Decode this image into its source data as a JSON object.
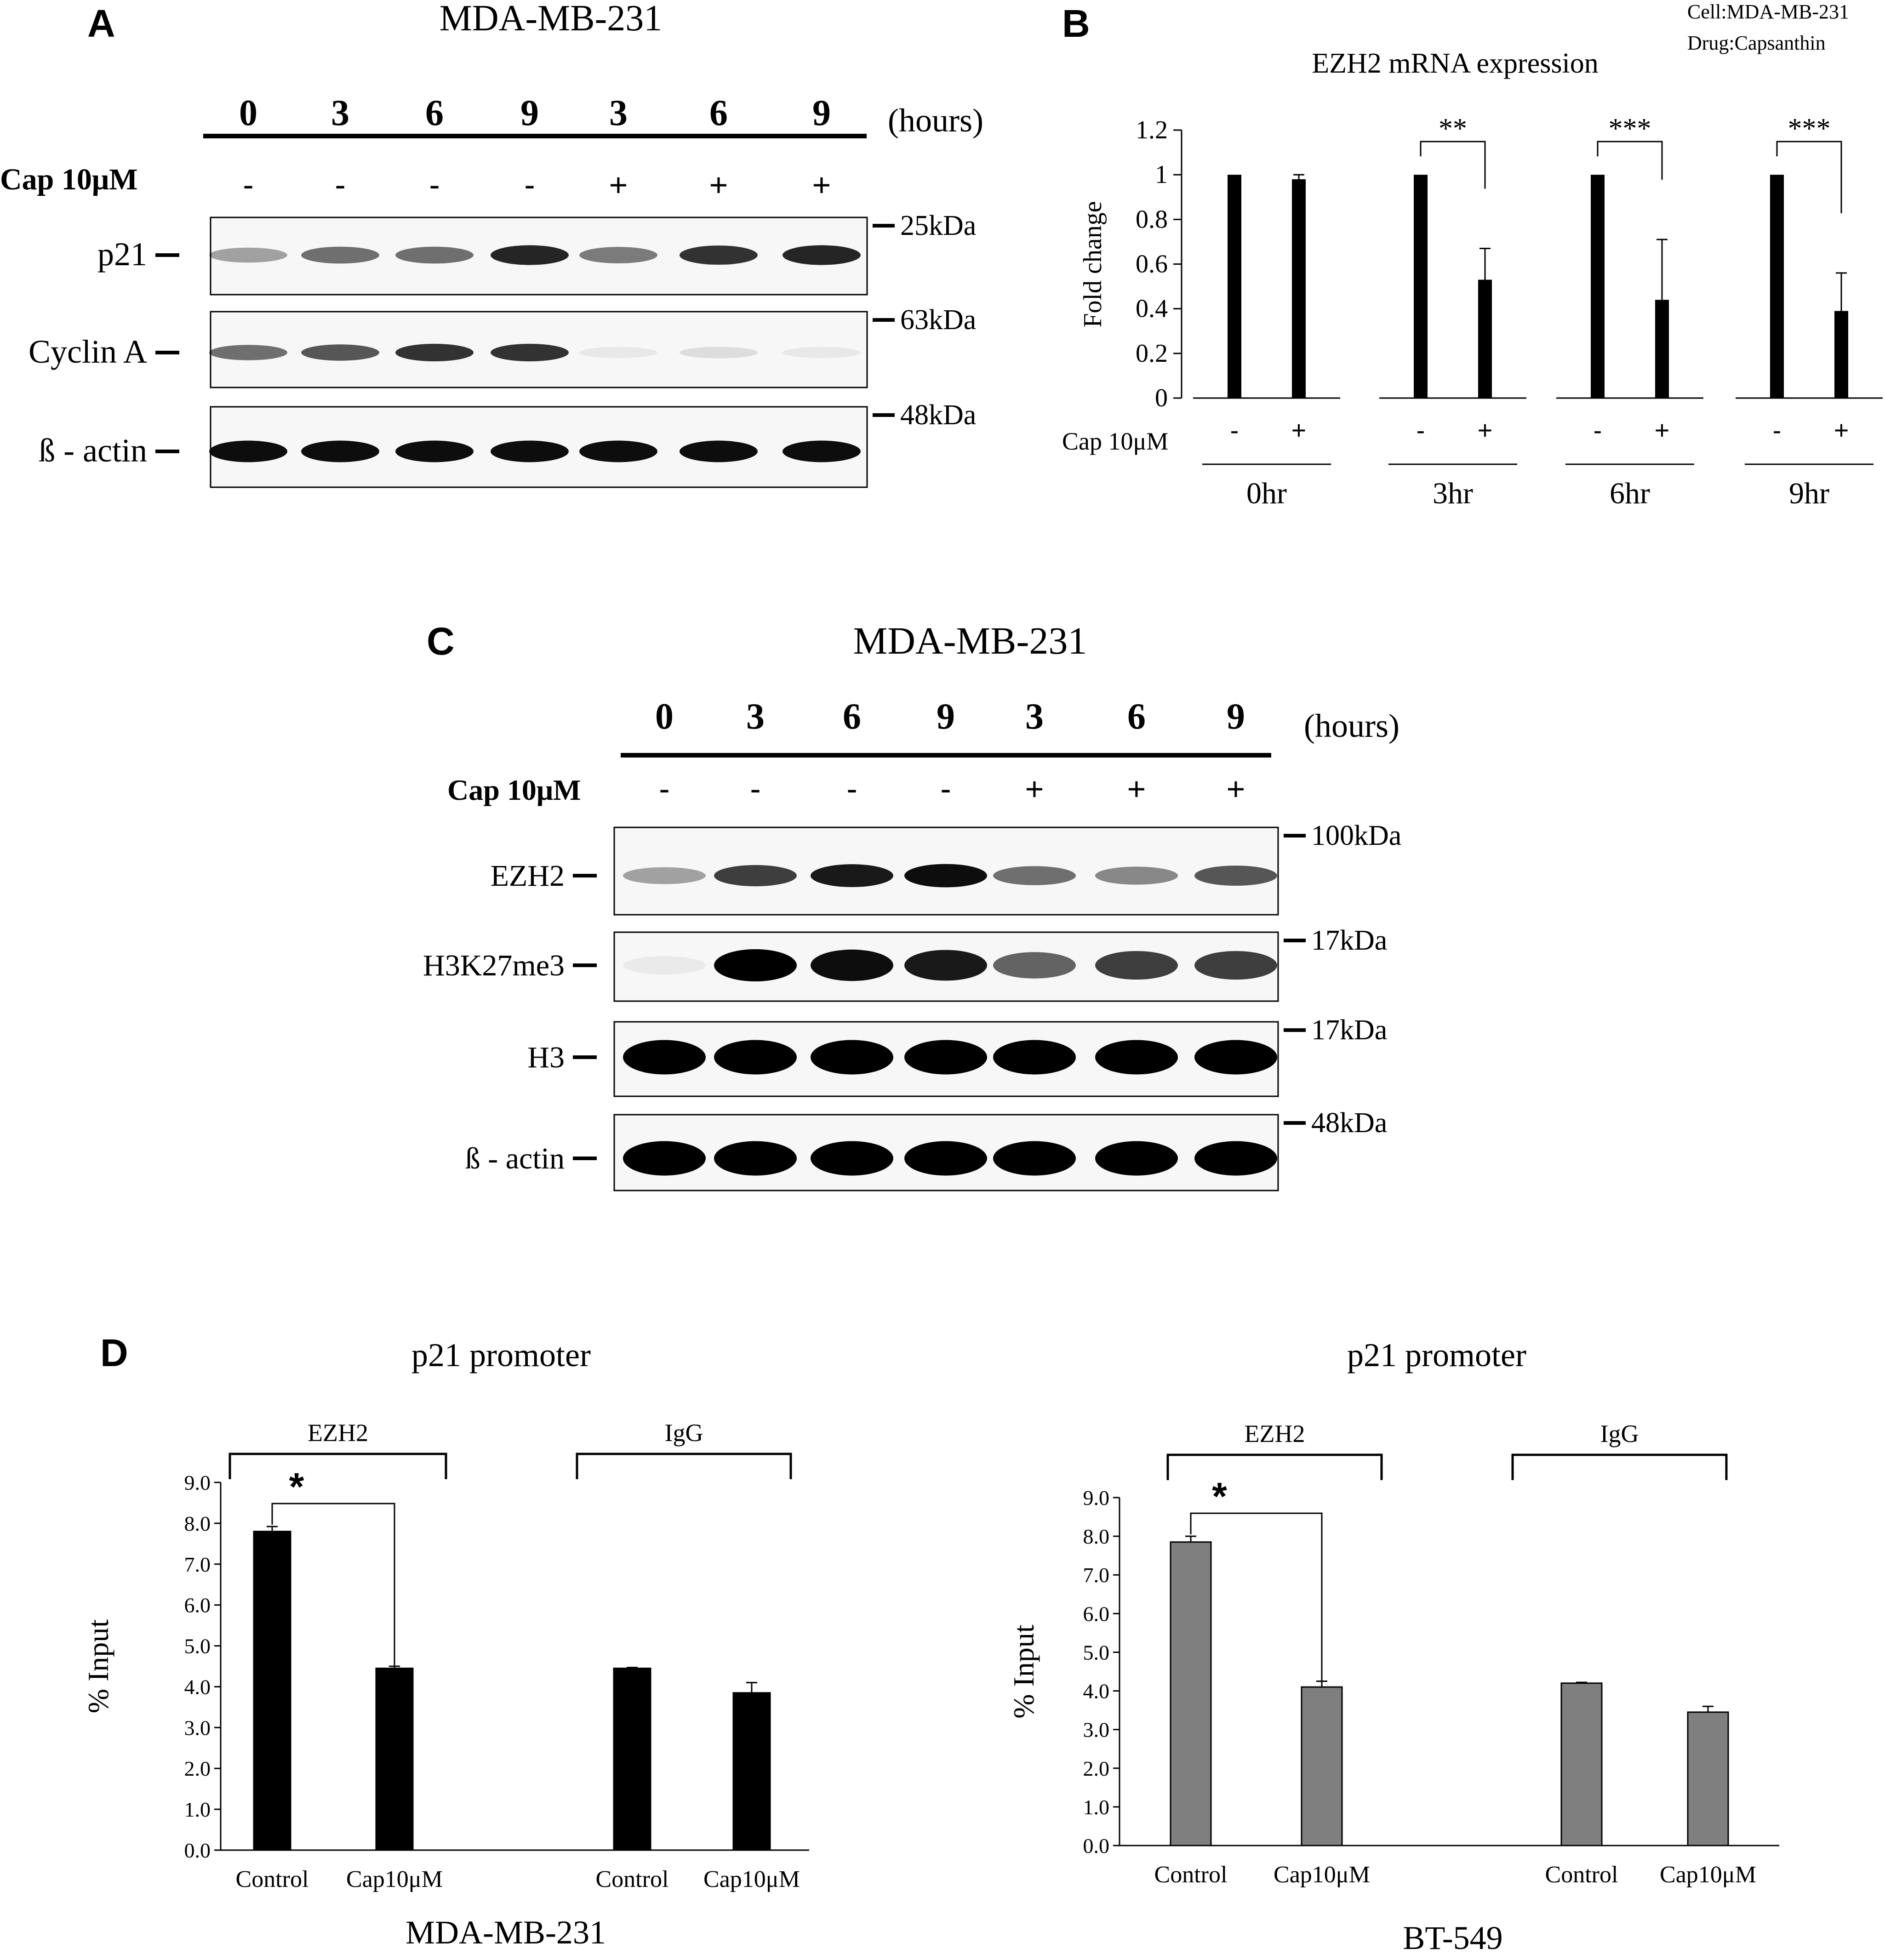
{
  "panelA": {
    "letter": "A",
    "title": "MDA-MB-231",
    "time_label": "(hours)",
    "times": [
      "0",
      "3",
      "6",
      "9",
      "3",
      "6",
      "9"
    ],
    "treatment_label": "Cap 10μM",
    "treatment_signs": [
      "-",
      "-",
      "-",
      "-",
      "+",
      "+",
      "+"
    ],
    "blots": [
      {
        "name": "p21",
        "mw": "25kDa",
        "intensity": [
          0.35,
          0.55,
          0.55,
          0.85,
          0.5,
          0.8,
          0.85
        ]
      },
      {
        "name": "Cyclin A",
        "mw": "63kDa",
        "intensity": [
          0.55,
          0.65,
          0.8,
          0.8,
          0.06,
          0.1,
          0.06
        ]
      },
      {
        "name": "ß - actin",
        "mw": "48kDa",
        "intensity": [
          0.95,
          0.95,
          0.95,
          0.95,
          0.95,
          0.95,
          0.95
        ]
      }
    ]
  },
  "panelB": {
    "letter": "B",
    "corner_note": [
      "Cell:MDA-MB-231",
      "Drug:Capsanthin"
    ],
    "chart_data": {
      "type": "bar",
      "title": "EZH2 mRNA expression",
      "ylabel": "Fold change",
      "ylim": [
        0,
        1.2
      ],
      "yticks": [
        "0",
        "0.2",
        "0.4",
        "0.6",
        "0.8",
        "1",
        "1.2"
      ],
      "treatment_label": "Cap 10μM",
      "signs": [
        "-",
        "+"
      ],
      "groups": [
        "0hr",
        "3hr",
        "6hr",
        "9hr"
      ],
      "series": [
        {
          "values": [
            1,
            1,
            1,
            1
          ],
          "errors": [
            0,
            0,
            0,
            0
          ]
        },
        {
          "values": [
            0.98,
            0.53,
            0.44,
            0.39
          ],
          "errors": [
            0.02,
            0.14,
            0.27,
            0.17
          ]
        }
      ],
      "significance": [
        "",
        "**",
        "***",
        "***"
      ]
    }
  },
  "panelC": {
    "letter": "C",
    "title": "MDA-MB-231",
    "time_label": "(hours)",
    "times": [
      "0",
      "3",
      "6",
      "9",
      "3",
      "6",
      "9"
    ],
    "treatment_label": "Cap 10μM",
    "treatment_signs": [
      "-",
      "-",
      "-",
      "-",
      "+",
      "+",
      "+"
    ],
    "blots": [
      {
        "name": "EZH2",
        "mw": "100kDa",
        "intensity": [
          0.35,
          0.75,
          0.9,
          0.95,
          0.55,
          0.45,
          0.65
        ]
      },
      {
        "name": "H3K27me3",
        "mw": "17kDa",
        "intensity": [
          0.05,
          1.0,
          0.95,
          0.9,
          0.6,
          0.75,
          0.75
        ]
      },
      {
        "name": "H3",
        "mw": "17kDa",
        "intensity": [
          1.0,
          1.0,
          1.0,
          1.0,
          1.0,
          1.0,
          1.0
        ]
      },
      {
        "name": "ß - actin",
        "mw": "48kDa",
        "intensity": [
          1.0,
          1.0,
          1.0,
          1.0,
          1.0,
          1.0,
          1.0
        ]
      }
    ]
  },
  "panelD": {
    "letter": "D",
    "chart_data": [
      {
        "type": "bar",
        "title": "p21  promoter",
        "subtitle": "MDA-MB-231",
        "ylabel": "% Input",
        "ylim": [
          0,
          9
        ],
        "yticks": [
          "0.0",
          "1.0",
          "2.0",
          "3.0",
          "4.0",
          "5.0",
          "6.0",
          "7.0",
          "8.0",
          "9.0"
        ],
        "groups": [
          "EZH2",
          "IgG"
        ],
        "categories": [
          "Control",
          "Cap10μM",
          "Control",
          "Cap10μM"
        ],
        "values": [
          7.8,
          4.45,
          4.45,
          3.85
        ],
        "errors": [
          0.12,
          0.05,
          0.02,
          0.25
        ],
        "significance": "*",
        "color": "#000000"
      },
      {
        "type": "bar",
        "title": "p21  promoter",
        "subtitle": "BT-549",
        "ylabel": "% Input",
        "ylim": [
          0,
          9
        ],
        "yticks": [
          "0.0",
          "1.0",
          "2.0",
          "3.0",
          "4.0",
          "5.0",
          "6.0",
          "7.0",
          "8.0",
          "9.0"
        ],
        "groups": [
          "EZH2",
          "IgG"
        ],
        "categories": [
          "Control",
          "Cap10μM",
          "Control",
          "Cap10μM"
        ],
        "values": [
          7.85,
          4.1,
          4.2,
          3.45
        ],
        "errors": [
          0.15,
          0.15,
          0.02,
          0.15
        ],
        "significance": "*",
        "color": "#7f7f7f"
      }
    ]
  }
}
